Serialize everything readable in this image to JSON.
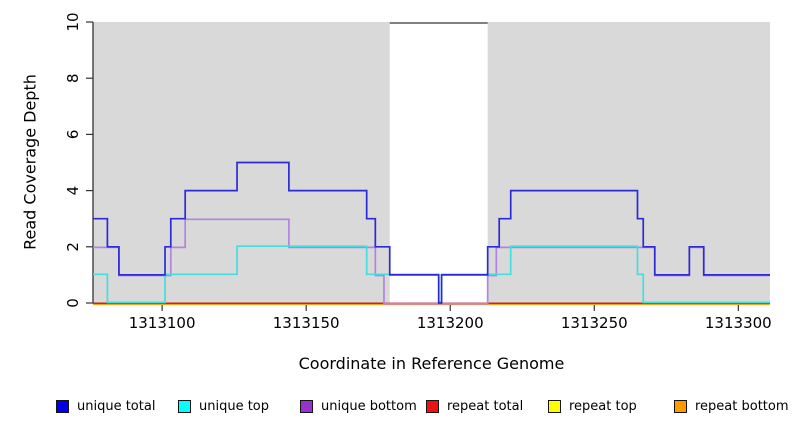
{
  "figure": {
    "background": "#ffffff"
  },
  "chart_data": {
    "type": "line",
    "subtype": "step-coverage",
    "title": "",
    "xlabel": "Coordinate in Reference Genome",
    "ylabel": "Read Coverage Depth",
    "xlim": [
      1313076,
      1313311
    ],
    "ylim": [
      0,
      10
    ],
    "x_ticks": [
      1313100,
      1313150,
      1313200,
      1313250,
      1313300
    ],
    "y_ticks": [
      0,
      2,
      4,
      6,
      8,
      10
    ],
    "grid": false,
    "plot_bg": "#d9d9d9",
    "axis_color": "#333333",
    "tick_label_color": "#000000",
    "highlight_region": {
      "x_start": 1313179,
      "x_end": 1313213,
      "fill": "#ffffff",
      "top_border_color": "#808080"
    },
    "legend_position": "bottom",
    "series": [
      {
        "name": "unique total",
        "line_color": "#2b2bd5",
        "swatch_color": "#0000ee",
        "points": [
          [
            1313076,
            3
          ],
          [
            1313081,
            2
          ],
          [
            1313085,
            1
          ],
          [
            1313101,
            2
          ],
          [
            1313103,
            3
          ],
          [
            1313108,
            4
          ],
          [
            1313126,
            5
          ],
          [
            1313144,
            4
          ],
          [
            1313171,
            3
          ],
          [
            1313174,
            2
          ],
          [
            1313179,
            1
          ],
          [
            1313196,
            0
          ],
          [
            1313197,
            1
          ],
          [
            1313213,
            2
          ],
          [
            1313217,
            3
          ],
          [
            1313221,
            4
          ],
          [
            1313265,
            3
          ],
          [
            1313267,
            2
          ],
          [
            1313271,
            1
          ],
          [
            1313283,
            2
          ],
          [
            1313288,
            1
          ]
        ]
      },
      {
        "name": "unique top",
        "line_color": "#45dede",
        "swatch_color": "#00ffff",
        "points": [
          [
            1313076,
            1
          ],
          [
            1313081,
            0
          ],
          [
            1313101,
            1
          ],
          [
            1313126,
            2
          ],
          [
            1313171,
            1
          ],
          [
            1313196,
            0
          ],
          [
            1313197,
            1
          ],
          [
            1313221,
            2
          ],
          [
            1313265,
            1
          ],
          [
            1313267,
            0
          ]
        ]
      },
      {
        "name": "unique bottom",
        "line_color": "#b184e0",
        "swatch_color": "#9932cc",
        "points": [
          [
            1313076,
            2
          ],
          [
            1313085,
            1
          ],
          [
            1313103,
            2
          ],
          [
            1313108,
            3
          ],
          [
            1313144,
            2
          ],
          [
            1313174,
            1
          ],
          [
            1313177,
            0
          ],
          [
            1313213,
            1
          ],
          [
            1313216,
            2
          ],
          [
            1313271,
            1
          ],
          [
            1313283,
            2
          ],
          [
            1313288,
            1
          ]
        ]
      },
      {
        "name": "repeat total",
        "line_color": "#cc2222",
        "swatch_color": "#ee1111",
        "points": [
          [
            1313076,
            0
          ]
        ]
      },
      {
        "name": "repeat top",
        "line_color": "#e8e822",
        "swatch_color": "#ffff00",
        "points": [
          [
            1313076,
            0
          ]
        ]
      },
      {
        "name": "repeat bottom",
        "line_color": "#ff9416",
        "swatch_color": "#ff9900",
        "points": [
          [
            1313076,
            0
          ]
        ]
      }
    ]
  }
}
